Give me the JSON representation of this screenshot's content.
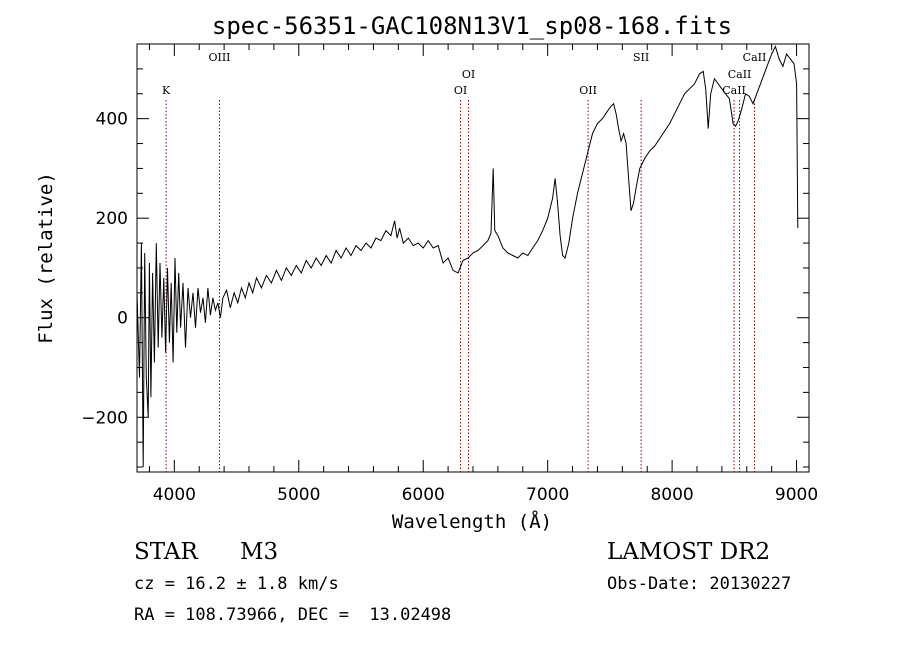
{
  "chart_data": {
    "type": "line",
    "title": "spec-56351-GAC108N13V1_sp08-168.fits",
    "xlabel": "Wavelength (Å)",
    "ylabel": "Flux (relative)",
    "xlim": [
      3700,
      9100
    ],
    "ylim": [
      -310,
      550
    ],
    "xticks": [
      {
        "value": 4000,
        "label": "4000"
      },
      {
        "value": 5000,
        "label": "5000"
      },
      {
        "value": 6000,
        "label": "6000"
      },
      {
        "value": 7000,
        "label": "7000"
      },
      {
        "value": 8000,
        "label": "8000"
      },
      {
        "value": 9000,
        "label": "9000"
      }
    ],
    "yticks": [
      {
        "value": -200,
        "label": "−200"
      },
      {
        "value": 0,
        "label": "0"
      },
      {
        "value": 200,
        "label": "200"
      },
      {
        "value": 400,
        "label": "400"
      }
    ],
    "line_color": "#000000",
    "line_marker_color": "#8b0000",
    "spectral_lines": [
      {
        "label": "K",
        "wavelength": 3934,
        "label_level": "low"
      },
      {
        "label": "OIII",
        "wavelength": 4363,
        "label_level": "high"
      },
      {
        "label": "OI",
        "wavelength": 6300,
        "label_level": "low"
      },
      {
        "label": "OI",
        "wavelength": 6364,
        "label_level": "mid"
      },
      {
        "label": "OII",
        "wavelength": 7325,
        "label_level": "low"
      },
      {
        "label": "SII",
        "wavelength": 7751,
        "label_level": "high"
      },
      {
        "label": "CaII",
        "wavelength": 8498,
        "label_level": "low"
      },
      {
        "label": "CaII",
        "wavelength": 8542,
        "label_level": "mid"
      },
      {
        "label": "CaII",
        "wavelength": 8662,
        "label_level": "high"
      }
    ],
    "series": [
      {
        "values": [
          [
            3700,
            50
          ],
          [
            3720,
            -120
          ],
          [
            3735,
            150
          ],
          [
            3750,
            -300
          ],
          [
            3762,
            130
          ],
          [
            3775,
            -120
          ],
          [
            3790,
            -200
          ],
          [
            3800,
            110
          ],
          [
            3812,
            -160
          ],
          [
            3825,
            90
          ],
          [
            3840,
            -90
          ],
          [
            3855,
            150
          ],
          [
            3870,
            -60
          ],
          [
            3885,
            110
          ],
          [
            3900,
            -40
          ],
          [
            3915,
            80
          ],
          [
            3930,
            -70
          ],
          [
            3945,
            100
          ],
          [
            3960,
            -50
          ],
          [
            3975,
            70
          ],
          [
            3990,
            -90
          ],
          [
            4005,
            120
          ],
          [
            4020,
            -30
          ],
          [
            4035,
            90
          ],
          [
            4050,
            -20
          ],
          [
            4070,
            70
          ],
          [
            4090,
            -60
          ],
          [
            4110,
            60
          ],
          [
            4130,
            0
          ],
          [
            4150,
            50
          ],
          [
            4170,
            -20
          ],
          [
            4190,
            60
          ],
          [
            4210,
            10
          ],
          [
            4230,
            40
          ],
          [
            4250,
            -10
          ],
          [
            4270,
            60
          ],
          [
            4290,
            5
          ],
          [
            4310,
            40
          ],
          [
            4330,
            15
          ],
          [
            4350,
            30
          ],
          [
            4370,
            0
          ],
          [
            4390,
            40
          ],
          [
            4420,
            55
          ],
          [
            4450,
            20
          ],
          [
            4480,
            50
          ],
          [
            4510,
            30
          ],
          [
            4540,
            60
          ],
          [
            4570,
            40
          ],
          [
            4600,
            70
          ],
          [
            4630,
            50
          ],
          [
            4660,
            80
          ],
          [
            4700,
            60
          ],
          [
            4740,
            85
          ],
          [
            4780,
            70
          ],
          [
            4820,
            95
          ],
          [
            4860,
            75
          ],
          [
            4900,
            100
          ],
          [
            4940,
            85
          ],
          [
            4980,
            105
          ],
          [
            5020,
            90
          ],
          [
            5060,
            115
          ],
          [
            5100,
            100
          ],
          [
            5140,
            120
          ],
          [
            5180,
            105
          ],
          [
            5220,
            125
          ],
          [
            5260,
            110
          ],
          [
            5300,
            135
          ],
          [
            5340,
            120
          ],
          [
            5380,
            140
          ],
          [
            5420,
            125
          ],
          [
            5460,
            145
          ],
          [
            5500,
            135
          ],
          [
            5540,
            150
          ],
          [
            5580,
            140
          ],
          [
            5620,
            160
          ],
          [
            5660,
            155
          ],
          [
            5700,
            175
          ],
          [
            5740,
            165
          ],
          [
            5770,
            195
          ],
          [
            5790,
            160
          ],
          [
            5810,
            180
          ],
          [
            5840,
            150
          ],
          [
            5880,
            160
          ],
          [
            5920,
            145
          ],
          [
            5960,
            150
          ],
          [
            6000,
            140
          ],
          [
            6040,
            155
          ],
          [
            6080,
            140
          ],
          [
            6120,
            145
          ],
          [
            6160,
            110
          ],
          [
            6200,
            120
          ],
          [
            6240,
            95
          ],
          [
            6280,
            90
          ],
          [
            6320,
            115
          ],
          [
            6360,
            120
          ],
          [
            6400,
            130
          ],
          [
            6440,
            135
          ],
          [
            6480,
            145
          ],
          [
            6520,
            155
          ],
          [
            6545,
            170
          ],
          [
            6562,
            300
          ],
          [
            6575,
            175
          ],
          [
            6600,
            165
          ],
          [
            6640,
            140
          ],
          [
            6680,
            130
          ],
          [
            6720,
            125
          ],
          [
            6760,
            120
          ],
          [
            6800,
            130
          ],
          [
            6840,
            125
          ],
          [
            6880,
            140
          ],
          [
            6920,
            155
          ],
          [
            6960,
            175
          ],
          [
            7000,
            200
          ],
          [
            7040,
            240
          ],
          [
            7060,
            280
          ],
          [
            7080,
            230
          ],
          [
            7100,
            165
          ],
          [
            7120,
            125
          ],
          [
            7140,
            120
          ],
          [
            7170,
            150
          ],
          [
            7200,
            200
          ],
          [
            7240,
            250
          ],
          [
            7280,
            290
          ],
          [
            7320,
            330
          ],
          [
            7360,
            370
          ],
          [
            7400,
            390
          ],
          [
            7440,
            400
          ],
          [
            7480,
            415
          ],
          [
            7510,
            425
          ],
          [
            7530,
            430
          ],
          [
            7550,
            410
          ],
          [
            7570,
            380
          ],
          [
            7590,
            355
          ],
          [
            7610,
            370
          ],
          [
            7630,
            350
          ],
          [
            7650,
            280
          ],
          [
            7670,
            215
          ],
          [
            7690,
            230
          ],
          [
            7710,
            260
          ],
          [
            7740,
            300
          ],
          [
            7780,
            320
          ],
          [
            7820,
            335
          ],
          [
            7860,
            345
          ],
          [
            7900,
            360
          ],
          [
            7940,
            375
          ],
          [
            7980,
            390
          ],
          [
            8020,
            410
          ],
          [
            8060,
            430
          ],
          [
            8100,
            450
          ],
          [
            8140,
            460
          ],
          [
            8180,
            470
          ],
          [
            8220,
            490
          ],
          [
            8250,
            495
          ],
          [
            8270,
            460
          ],
          [
            8290,
            380
          ],
          [
            8310,
            450
          ],
          [
            8340,
            480
          ],
          [
            8370,
            470
          ],
          [
            8400,
            460
          ],
          [
            8430,
            450
          ],
          [
            8460,
            440
          ],
          [
            8490,
            390
          ],
          [
            8510,
            385
          ],
          [
            8530,
            395
          ],
          [
            8560,
            420
          ],
          [
            8590,
            450
          ],
          [
            8620,
            445
          ],
          [
            8650,
            430
          ],
          [
            8680,
            450
          ],
          [
            8710,
            470
          ],
          [
            8740,
            490
          ],
          [
            8770,
            510
          ],
          [
            8800,
            530
          ],
          [
            8830,
            545
          ],
          [
            8860,
            520
          ],
          [
            8890,
            505
          ],
          [
            8920,
            530
          ],
          [
            8950,
            520
          ],
          [
            8980,
            510
          ],
          [
            9000,
            470
          ],
          [
            9010,
            180
          ]
        ]
      }
    ]
  },
  "info": {
    "object_type": "STAR",
    "subclass": "M3",
    "survey": "LAMOST DR2",
    "cz": "cz = 16.2 ± 1.8 km/s",
    "obs_date": "Obs-Date: 20130227",
    "coords": "RA = 108.73966, DEC =  13.02498"
  }
}
